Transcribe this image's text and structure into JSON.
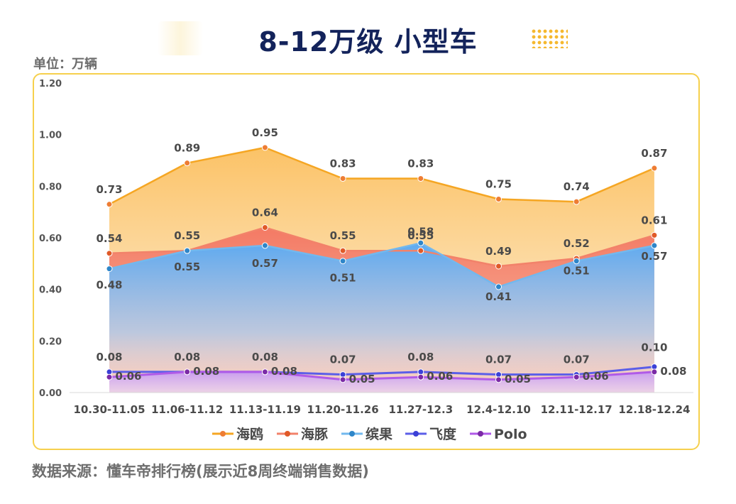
{
  "title": "8-12万级 小型车",
  "unit_label": "单位：万辆",
  "source": "数据来源：懂车帝排行榜(展示近8周终端销售数据)",
  "chart_data": {
    "type": "area",
    "categories": [
      "10.30-11.05",
      "11.06-11.12",
      "11.13-11.19",
      "11.20-11.26",
      "11.27-12.3",
      "12.4-12.10",
      "12.11-12.17",
      "12.18-12.24"
    ],
    "yticks": [
      "0.00",
      "0.20",
      "0.40",
      "0.60",
      "0.80",
      "1.00",
      "1.20"
    ],
    "ylim": [
      0,
      1.2
    ],
    "grid": false,
    "legend_position": "bottom",
    "series": [
      {
        "name": "海鸥",
        "color": "#f5a623",
        "marker": "#ee7d34",
        "values": [
          0.73,
          0.89,
          0.95,
          0.83,
          0.83,
          0.75,
          0.74,
          0.87
        ],
        "labels": [
          "0.73",
          "0.89",
          "0.95",
          "0.83",
          "0.83",
          "0.75",
          "0.74",
          "0.87"
        ]
      },
      {
        "name": "海豚",
        "color": "#f2826a",
        "marker": "#e05a28",
        "values": [
          0.54,
          0.55,
          0.64,
          0.55,
          0.55,
          0.49,
          0.52,
          0.61
        ],
        "labels": [
          "0.54",
          "0.55",
          "0.64",
          "0.55",
          "0.55",
          "0.49",
          "0.52",
          "0.61"
        ]
      },
      {
        "name": "缤果",
        "color": "#72b8ee",
        "marker": "#2e86c9",
        "values": [
          0.48,
          0.55,
          0.57,
          0.51,
          0.58,
          0.41,
          0.51,
          0.57
        ],
        "labels": [
          "0.48",
          "0.55",
          "0.57",
          "0.51",
          "0.58",
          "0.41",
          "0.51",
          "0.57"
        ]
      },
      {
        "name": "飞度",
        "color": "#5b5ee8",
        "marker": "#3b40d6",
        "values": [
          0.08,
          0.08,
          0.08,
          0.07,
          0.08,
          0.07,
          0.07,
          0.1
        ],
        "labels": [
          "0.08",
          "0.08",
          "0.08",
          "0.07",
          "0.08",
          "0.07",
          "0.07",
          "0.10"
        ]
      },
      {
        "name": "Polo",
        "color": "#b05ae8",
        "marker": "#7b2aa6",
        "values": [
          0.06,
          0.08,
          0.08,
          0.05,
          0.06,
          0.05,
          0.06,
          0.08
        ],
        "labels": [
          "0.06",
          "0.08",
          "0.08",
          "0.05",
          "0.06",
          "0.05",
          "0.06",
          "0.08"
        ]
      }
    ]
  }
}
